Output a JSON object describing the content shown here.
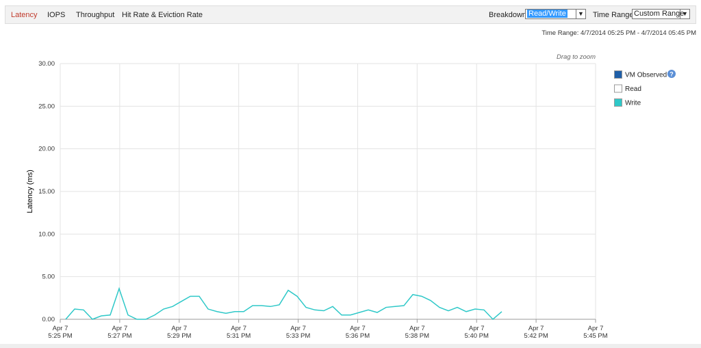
{
  "toolbar": {
    "tabs": [
      "Latency",
      "IOPS",
      "Throughput",
      "Hit Rate & Eviction Rate"
    ],
    "breakdown_label": "Breakdown:",
    "breakdown_value": "Read/Write",
    "time_range_label": "Time Range:",
    "time_range_value": "Custom Range"
  },
  "time_range_text": "Time Range: 4/7/2014 05:25 PM - 4/7/2014 05:45 PM",
  "chart_data": {
    "type": "line",
    "hint": "Drag to zoom",
    "y_label": "Latency (ms)",
    "ylim": [
      0,
      30
    ],
    "yticks": [
      {
        "value": 0,
        "label": "0.00"
      },
      {
        "value": 5,
        "label": "5.00"
      },
      {
        "value": 10,
        "label": "10.00"
      },
      {
        "value": 15,
        "label": "15.00"
      },
      {
        "value": 20,
        "label": "20.00"
      },
      {
        "value": 25,
        "label": "25.00"
      },
      {
        "value": 30,
        "label": "30.00"
      }
    ],
    "xticks": [
      [
        "Apr 7",
        "5:25 PM"
      ],
      [
        "Apr 7",
        "5:27 PM"
      ],
      [
        "Apr 7",
        "5:29 PM"
      ],
      [
        "Apr 7",
        "5:31 PM"
      ],
      [
        "Apr 7",
        "5:33 PM"
      ],
      [
        "Apr 7",
        "5:36 PM"
      ],
      [
        "Apr 7",
        "5:38 PM"
      ],
      [
        "Apr 7",
        "5:40 PM"
      ],
      [
        "Apr 7",
        "5:42 PM"
      ],
      [
        "Apr 7",
        "5:45 PM"
      ]
    ],
    "grid": true,
    "series": [
      {
        "name": "VM Observed",
        "color": "#1f5fa8"
      },
      {
        "name": "Read",
        "color": "#ffffff"
      },
      {
        "name": "Write",
        "color": "#2ec8c8",
        "values": [
          0,
          1.2,
          1.1,
          0,
          0.4,
          0.5,
          3.6,
          0.5,
          0,
          0,
          0.5,
          1.2,
          1.5,
          2.1,
          2.7,
          2.7,
          1.2,
          0.9,
          0.7,
          0.9,
          0.9,
          1.6,
          1.6,
          1.5,
          1.7,
          3.4,
          2.7,
          1.4,
          1.1,
          1.0,
          1.5,
          0.5,
          0.5,
          0.8,
          1.1,
          0.8,
          1.4,
          1.5,
          1.6,
          2.9,
          2.7,
          2.2,
          1.4,
          1.0,
          1.4,
          0.9,
          1.2,
          1.1,
          0,
          0.9
        ]
      }
    ]
  }
}
